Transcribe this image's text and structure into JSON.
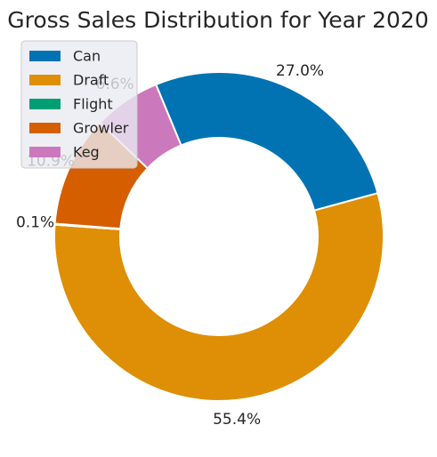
{
  "chart_data": {
    "type": "pie",
    "title": "Gross Sales Distribution for Year 2020",
    "donut": true,
    "categories": [
      "Can",
      "Draft",
      "Flight",
      "Growler",
      "Keg"
    ],
    "values": [
      27.0,
      55.4,
      0.1,
      10.9,
      6.6
    ],
    "value_labels": [
      "27.0%",
      "55.4%",
      "0.1%",
      "10.9%",
      "6.6%"
    ],
    "colors": [
      "#0173b2",
      "#de8f05",
      "#029e73",
      "#d55e00",
      "#cc78bc"
    ],
    "legend": {
      "placement": "top-left",
      "entries": [
        "Can",
        "Draft",
        "Flight",
        "Growler",
        "Keg"
      ]
    }
  }
}
